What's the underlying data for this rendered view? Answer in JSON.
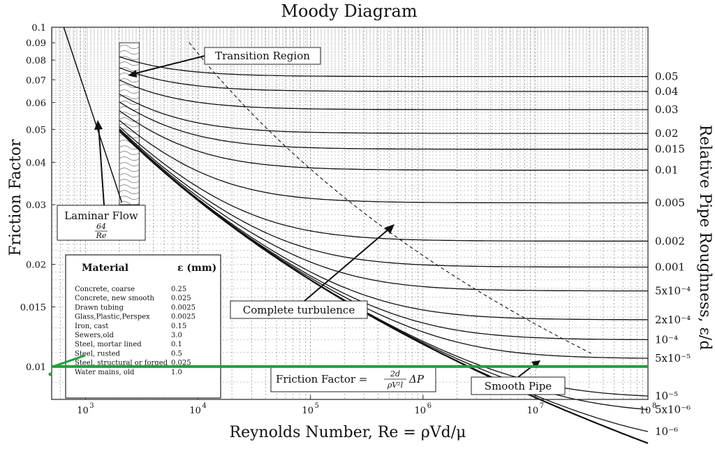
{
  "chart_data": {
    "type": "line",
    "title": "Moody Diagram",
    "xlabel": "Reynolds Number, Re = ρVd/μ",
    "ylabel": "Friction Factor",
    "y2label": "Relative Pipe Roughness, ε/d",
    "x_scale": "log",
    "y_scale": "log",
    "xlim": [
      500,
      100000000
    ],
    "ylim": [
      0.008,
      0.1
    ],
    "grid": true,
    "x_ticks": [
      {
        "value": 1000,
        "base": "10",
        "exp": "3"
      },
      {
        "value": 10000,
        "base": "10",
        "exp": "4"
      },
      {
        "value": 100000,
        "base": "10",
        "exp": "5"
      },
      {
        "value": 1000000,
        "base": "10",
        "exp": "6"
      },
      {
        "value": 10000000,
        "base": "10",
        "exp": "7"
      },
      {
        "value": 100000000,
        "base": "10",
        "exp": "8"
      }
    ],
    "y_ticks": [
      {
        "value": 0.1,
        "label": "0.1"
      },
      {
        "value": 0.09,
        "label": "0.09"
      },
      {
        "value": 0.08,
        "label": "0.08"
      },
      {
        "value": 0.07,
        "label": "0.07"
      },
      {
        "value": 0.06,
        "label": "0.06"
      },
      {
        "value": 0.05,
        "label": "0.05"
      },
      {
        "value": 0.04,
        "label": "0.04"
      },
      {
        "value": 0.03,
        "label": "0.03"
      },
      {
        "value": 0.02,
        "label": "0.02"
      },
      {
        "value": 0.015,
        "label": "0.015"
      },
      {
        "value": 0.01,
        "label": "0.01"
      }
    ],
    "roughness_series": [
      {
        "rr": 0.05,
        "label": "0.05"
      },
      {
        "rr": 0.04,
        "label": "0.04"
      },
      {
        "rr": 0.03,
        "label": "0.03"
      },
      {
        "rr": 0.02,
        "label": "0.02"
      },
      {
        "rr": 0.015,
        "label": "0.015"
      },
      {
        "rr": 0.01,
        "label": "0.01"
      },
      {
        "rr": 0.005,
        "label": "0.005"
      },
      {
        "rr": 0.002,
        "label": "0.002"
      },
      {
        "rr": 0.001,
        "label": "0.001"
      },
      {
        "rr": 0.0005,
        "label": "5x10⁻⁴"
      },
      {
        "rr": 0.0002,
        "label": "2x10⁻⁴"
      },
      {
        "rr": 0.0001,
        "label": "10⁻⁴"
      },
      {
        "rr": 5e-05,
        "label": "5x10⁻⁵"
      },
      {
        "rr": 1e-05,
        "label": "10⁻⁵"
      },
      {
        "rr": 5e-06,
        "label": "5x10⁻⁶"
      },
      {
        "rr": 1e-06,
        "label": "10⁻⁶"
      }
    ],
    "smooth_pipe": {
      "rr": 0,
      "re_start": 2000,
      "re_end": 100000000
    },
    "laminar": {
      "formula": "64/Re",
      "re_start": 640,
      "re_end": 2100
    },
    "turbulent_re_start": 2000,
    "transition_band": {
      "re_from": 2000,
      "re_to": 3000,
      "f_from": 0.03,
      "f_to": 0.09
    },
    "complete_turbulence_line": {
      "style": "dashed"
    },
    "highlight_line": {
      "f": 0.01,
      "color": "#22a03c"
    },
    "annotations": {
      "transition": "Transition Region",
      "laminar_title": "Laminar Flow",
      "laminar_num": "64",
      "laminar_den": "Re",
      "complete_turbulence": "Complete turbulence",
      "smooth_pipe": "Smooth Pipe",
      "friction_formula_prefix": "Friction Factor =",
      "friction_formula_num": "2d",
      "friction_formula_den": "ρV²l",
      "friction_formula_suffix": "ΔP"
    },
    "material_table": {
      "header_material": "Material",
      "header_eps": "ε (mm)",
      "rows": [
        {
          "material": "Concrete, coarse",
          "eps": "0.25"
        },
        {
          "material": "Concrete, new smooth",
          "eps": "0.025"
        },
        {
          "material": "Drawn tubing",
          "eps": "0.0025"
        },
        {
          "material": "Glass,Plastic,Perspex",
          "eps": "0.0025"
        },
        {
          "material": "Iron, cast",
          "eps": "0.15"
        },
        {
          "material": "Sewers,old",
          "eps": "3.0"
        },
        {
          "material": "Steel, mortar lined",
          "eps": "0.1"
        },
        {
          "material": "Steel, rusted",
          "eps": "0.5"
        },
        {
          "material": "Steel, structural or forged",
          "eps": "0.025"
        },
        {
          "material": "Water mains, old",
          "eps": "1.0"
        }
      ]
    }
  }
}
